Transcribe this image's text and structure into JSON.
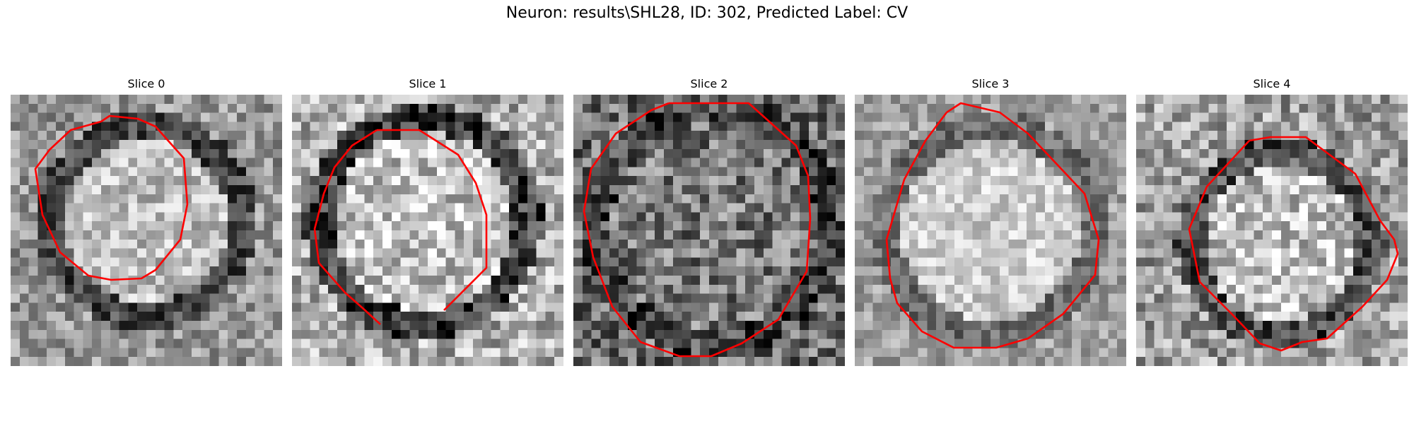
{
  "figure": {
    "title": "Neuron: results\\SHL28, ID: 302, Predicted Label: CV"
  },
  "panels": [
    {
      "title": "Slice 0"
    },
    {
      "title": "Slice 1"
    },
    {
      "title": "Slice 2"
    },
    {
      "title": "Slice 3"
    },
    {
      "title": "Slice 4"
    }
  ],
  "colors": {
    "contour": "#ff0000",
    "background": "#ffffff"
  }
}
